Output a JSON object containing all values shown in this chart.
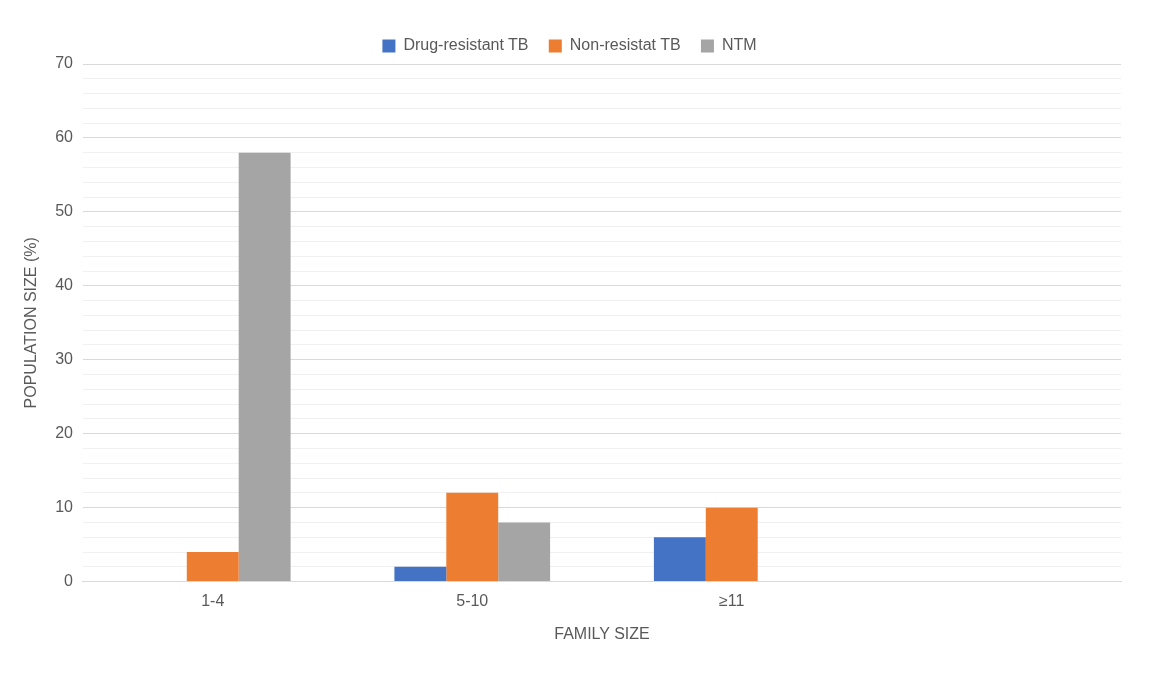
{
  "chart_data": {
    "type": "bar",
    "xlabel": "FAMILY SIZE",
    "ylabel": "POPULATION SIZE (%)",
    "categories": [
      "1-4",
      "5-10",
      "≥11",
      null
    ],
    "series": [
      {
        "name": "Drug-resistant TB",
        "color": "#4472c4",
        "values": [
          0,
          2,
          6,
          null
        ]
      },
      {
        "name": "Non-resistat TB",
        "color": "#ed7d31",
        "values": [
          4,
          12,
          10,
          null
        ]
      },
      {
        "name": "NTM",
        "color": "#a5a5a5",
        "values": [
          58,
          8,
          0,
          null
        ]
      }
    ],
    "ylim": [
      0,
      70
    ],
    "yticks": [
      0,
      {
        "value": 2,
        "label": null
      },
      {
        "value": 4,
        "label": null
      },
      {
        "value": 6,
        "label": null
      },
      {
        "value": 8,
        "label": null
      },
      10,
      {
        "value": 12,
        "label": null
      },
      {
        "value": 14,
        "label": null
      },
      {
        "value": 16,
        "label": null
      },
      {
        "value": 18,
        "label": null
      },
      20,
      {
        "value": 22,
        "label": null
      },
      {
        "value": 24,
        "label": null
      },
      {
        "value": 26,
        "label": null
      },
      {
        "value": 28,
        "label": null
      },
      30,
      {
        "value": 32,
        "label": null
      },
      {
        "value": 34,
        "label": null
      },
      {
        "value": 36,
        "label": null
      },
      {
        "value": 38,
        "label": null
      },
      40,
      {
        "value": 42,
        "label": null
      },
      {
        "value": 44,
        "label": null
      },
      {
        "value": 46,
        "label": null
      },
      {
        "value": 48,
        "label": null
      },
      50,
      {
        "value": 52,
        "label": null
      },
      {
        "value": 54,
        "label": null
      },
      {
        "value": 56,
        "label": null
      },
      {
        "value": 58,
        "label": null
      },
      60,
      {
        "value": 62,
        "label": null
      },
      {
        "value": 64,
        "label": null
      },
      {
        "value": 66,
        "label": null
      },
      {
        "value": 68,
        "label": null
      },
      70
    ],
    "grid": "y",
    "legend": "top"
  }
}
